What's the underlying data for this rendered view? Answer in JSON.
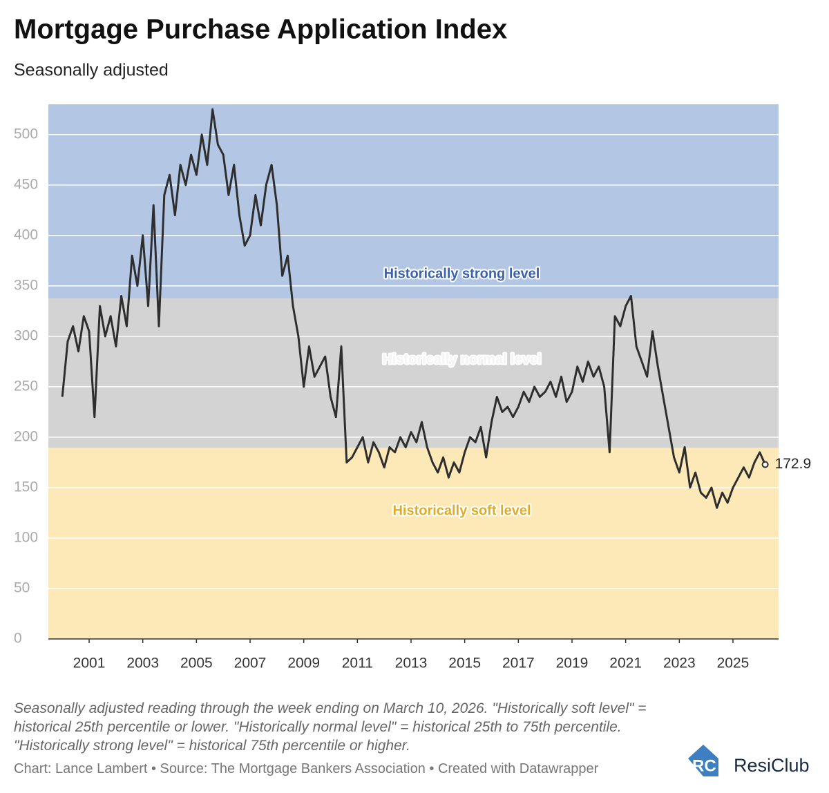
{
  "chart_data": {
    "type": "line",
    "title": "Mortgage Purchase Application Index",
    "subtitle": "Seasonally adjusted",
    "footnote": "Seasonally adjusted reading through the week ending on March 10, 2026. \"Historically soft level\" = historical 25th percentile or lower. \"Historically normal level\" = historical 25th to 75th percentile. \"Historically strong level\" = historical 75th percentile or higher.",
    "credit": "Chart: Lance Lambert • Source: The Mortgage Bankers Association • Created with Datawrapper",
    "brand": "ResiClub",
    "xlim": [
      1999.48,
      2026.7
    ],
    "xticks": [
      2001,
      2003,
      2005,
      2007,
      2009,
      2011,
      2013,
      2015,
      2017,
      2019,
      2021,
      2023,
      2025
    ],
    "ylim": [
      0,
      530
    ],
    "yticks": [
      0,
      50,
      100,
      150,
      200,
      250,
      300,
      350,
      400,
      450,
      500
    ],
    "grid": true,
    "bands": [
      {
        "label": "Historically soft level",
        "from": 0,
        "to": 189.5,
        "color": "#fde9b8",
        "text_color": "#e0ad22"
      },
      {
        "label": "Historically normal level",
        "from": 189.5,
        "to": 337.5,
        "color": "#d3d3d3",
        "text_color": "#f4f4f4"
      },
      {
        "label": "Historically strong level",
        "from": 337.5,
        "to": 530,
        "color": "#b3c7e5",
        "text_color": "#3b62ad"
      }
    ],
    "x": [
      2000.0,
      2000.2,
      2000.4,
      2000.6,
      2000.8,
      2001.0,
      2001.2,
      2001.4,
      2001.6,
      2001.8,
      2002.0,
      2002.2,
      2002.4,
      2002.6,
      2002.8,
      2003.0,
      2003.2,
      2003.4,
      2003.6,
      2003.8,
      2004.0,
      2004.2,
      2004.4,
      2004.6,
      2004.8,
      2005.0,
      2005.2,
      2005.4,
      2005.6,
      2005.8,
      2006.0,
      2006.2,
      2006.4,
      2006.6,
      2006.8,
      2007.0,
      2007.2,
      2007.4,
      2007.6,
      2007.8,
      2008.0,
      2008.2,
      2008.4,
      2008.6,
      2008.8,
      2009.0,
      2009.2,
      2009.4,
      2009.6,
      2009.8,
      2010.0,
      2010.2,
      2010.4,
      2010.6,
      2010.8,
      2011.0,
      2011.2,
      2011.4,
      2011.6,
      2011.8,
      2012.0,
      2012.2,
      2012.4,
      2012.6,
      2012.8,
      2013.0,
      2013.2,
      2013.4,
      2013.6,
      2013.8,
      2014.0,
      2014.2,
      2014.4,
      2014.6,
      2014.8,
      2015.0,
      2015.2,
      2015.4,
      2015.6,
      2015.8,
      2016.0,
      2016.2,
      2016.4,
      2016.6,
      2016.8,
      2017.0,
      2017.2,
      2017.4,
      2017.6,
      2017.8,
      2018.0,
      2018.2,
      2018.4,
      2018.6,
      2018.8,
      2019.0,
      2019.2,
      2019.4,
      2019.6,
      2019.8,
      2020.0,
      2020.2,
      2020.4,
      2020.6,
      2020.8,
      2021.0,
      2021.2,
      2021.4,
      2021.6,
      2021.8,
      2022.0,
      2022.2,
      2022.4,
      2022.6,
      2022.8,
      2023.0,
      2023.2,
      2023.4,
      2023.6,
      2023.8,
      2024.0,
      2024.2,
      2024.4,
      2024.6,
      2024.8,
      2025.0,
      2025.2,
      2025.4,
      2025.6,
      2025.8,
      2026.0,
      2026.2
    ],
    "series": [
      {
        "name": "Index",
        "color": "#2e2e2e",
        "values": [
          240,
          295,
          310,
          285,
          320,
          305,
          220,
          330,
          300,
          320,
          290,
          340,
          310,
          380,
          350,
          400,
          330,
          430,
          310,
          440,
          460,
          420,
          470,
          450,
          480,
          460,
          500,
          470,
          525,
          490,
          480,
          440,
          470,
          420,
          390,
          400,
          440,
          410,
          450,
          470,
          430,
          360,
          380,
          330,
          300,
          250,
          290,
          260,
          270,
          280,
          240,
          220,
          290,
          175,
          180,
          190,
          200,
          175,
          195,
          185,
          170,
          190,
          185,
          200,
          190,
          205,
          195,
          215,
          190,
          175,
          165,
          180,
          160,
          175,
          165,
          185,
          200,
          195,
          210,
          180,
          215,
          240,
          225,
          230,
          220,
          230,
          245,
          235,
          250,
          240,
          245,
          255,
          240,
          260,
          235,
          245,
          270,
          255,
          275,
          260,
          270,
          250,
          185,
          320,
          310,
          330,
          340,
          290,
          275,
          260,
          305,
          270,
          240,
          210,
          180,
          165,
          190,
          150,
          165,
          145,
          140,
          150,
          130,
          145,
          135,
          150,
          160,
          170,
          160,
          175,
          185,
          172.9
        ]
      }
    ]
  }
}
